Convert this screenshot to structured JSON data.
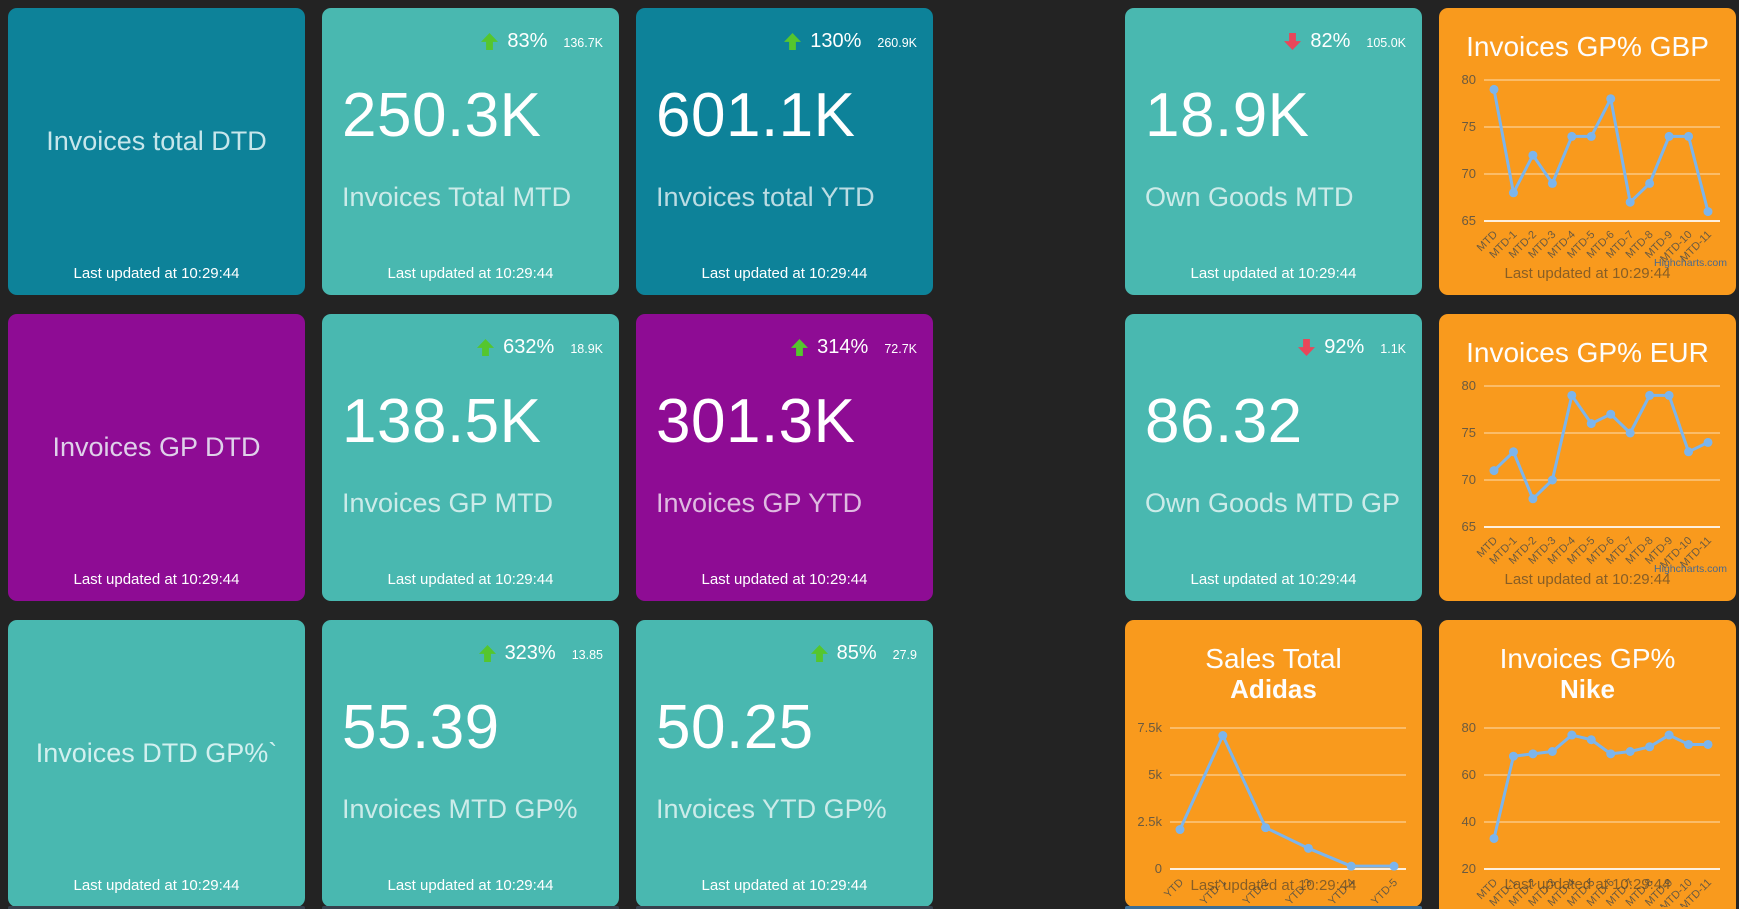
{
  "dashboard": {
    "last_updated": "Last updated at 10:29:44",
    "watermark": "Highcharts.com",
    "colors": {
      "background": "#232323",
      "dark_teal": "#0d8299",
      "teal": "#49b8b0",
      "purple": "#8e0c94",
      "orange": "#f99a1d",
      "trend_up_green": "#55c62d",
      "trend_down_red": "#e9475a",
      "chart_line_blue": "#7cb5ec"
    },
    "tiles": [
      {
        "name": "invoices-total-dtd",
        "type": "label",
        "bg": "dark-teal",
        "label": "Invoices total DTD"
      },
      {
        "name": "invoices-total-mtd",
        "type": "number",
        "bg": "teal",
        "trend_dir": "up",
        "trend_pct": "83%",
        "trend_prev": "136.7K",
        "value": "250.3K",
        "label": "Invoices Total MTD"
      },
      {
        "name": "invoices-total-ytd",
        "type": "number",
        "bg": "dark-teal",
        "trend_dir": "up",
        "trend_pct": "130%",
        "trend_prev": "260.9K",
        "value": "601.1K",
        "label": "Invoices total YTD"
      },
      {
        "name": "own-goods-mtd",
        "type": "number",
        "bg": "teal",
        "trend_dir": "down",
        "trend_pct": "82%",
        "trend_prev": "105.0K",
        "value": "18.9K",
        "label": "Own Goods MTD"
      },
      {
        "name": "invoices-gp-gbp",
        "type": "chart",
        "bg": "orange",
        "title_line1": "Invoices GP% GBP",
        "chart_index": 0
      },
      {
        "name": "invoices-gp-dtd",
        "type": "label",
        "bg": "purple",
        "label": "Invoices GP DTD"
      },
      {
        "name": "invoices-gp-mtd",
        "type": "number",
        "bg": "teal",
        "trend_dir": "up",
        "trend_pct": "632%",
        "trend_prev": "18.9K",
        "value": "138.5K",
        "label": "Invoices GP MTD"
      },
      {
        "name": "invoices-gp-ytd",
        "type": "number",
        "bg": "purple",
        "trend_dir": "up",
        "trend_pct": "314%",
        "trend_prev": "72.7K",
        "value": "301.3K",
        "label": "Invoices GP YTD"
      },
      {
        "name": "own-goods-mtd-gp",
        "type": "number",
        "bg": "teal",
        "trend_dir": "down",
        "trend_pct": "92%",
        "trend_prev": "1.1K",
        "value": "86.32",
        "label": "Own Goods MTD GP"
      },
      {
        "name": "invoices-gp-eur",
        "type": "chart",
        "bg": "orange",
        "title_line1": "Invoices GP% EUR",
        "chart_index": 1
      },
      {
        "name": "invoices-dtd-gp",
        "type": "label",
        "bg": "teal",
        "label": "Invoices DTD GP%`"
      },
      {
        "name": "invoices-mtd-gp",
        "type": "number",
        "bg": "teal",
        "trend_dir": "up",
        "trend_pct": "323%",
        "trend_prev": "13.85",
        "value": "55.39",
        "label": "Invoices MTD GP%"
      },
      {
        "name": "invoices-ytd-gp",
        "type": "number",
        "bg": "teal",
        "trend_dir": "up",
        "trend_pct": "85%",
        "trend_prev": "27.9",
        "value": "50.25",
        "label": "Invoices YTD GP%"
      },
      {
        "name": "sales-total-adidas",
        "type": "chart",
        "bg": "orange",
        "title_line1": "Sales Total",
        "title_line2": "Adidas",
        "chart_index": 2
      },
      {
        "name": "invoices-gp-nike",
        "type": "chart",
        "bg": "orange",
        "title_line1": "Invoices GP%",
        "title_line2": "Nike",
        "chart_index": 3
      }
    ]
  },
  "chart_data": [
    {
      "type": "line",
      "title": "Invoices GP% GBP",
      "categories": [
        "MTD",
        "MTD-1",
        "MTD-2",
        "MTD-3",
        "MTD-4",
        "MTD-5",
        "MTD-6",
        "MTD-7",
        "MTD-8",
        "MTD-9",
        "MTD-10",
        "MTD-11"
      ],
      "values": [
        79,
        68,
        72,
        69,
        74,
        74,
        78,
        67,
        69,
        74,
        74,
        66
      ],
      "yticks": [
        65,
        70,
        75,
        80
      ],
      "ylim": [
        65,
        80
      ],
      "xlabel": "",
      "ylabel": "",
      "grid": true,
      "legend": "none"
    },
    {
      "type": "line",
      "title": "Invoices GP% EUR",
      "categories": [
        "MTD",
        "MTD-1",
        "MTD-2",
        "MTD-3",
        "MTD-4",
        "MTD-5",
        "MTD-6",
        "MTD-7",
        "MTD-8",
        "MTD-9",
        "MTD-10",
        "MTD-11"
      ],
      "values": [
        71,
        73,
        68,
        70,
        79,
        76,
        77,
        75,
        79,
        79,
        73,
        74
      ],
      "yticks": [
        65,
        70,
        75,
        80
      ],
      "ylim": [
        65,
        80
      ],
      "xlabel": "",
      "ylabel": "",
      "grid": true,
      "legend": "none"
    },
    {
      "type": "line",
      "title": "Sales Total Adidas",
      "categories": [
        "YTD",
        "YTD-1",
        "YTD-2",
        "YTD-3",
        "YTD-4",
        "YTD-5"
      ],
      "values": [
        2100,
        7100,
        2200,
        1100,
        150,
        150
      ],
      "yticks": [
        0,
        2500,
        5000,
        7500
      ],
      "ytick_labels": [
        "0",
        "2.5k",
        "5k",
        "7.5k"
      ],
      "ylim": [
        0,
        7500
      ],
      "xlabel": "",
      "ylabel": "",
      "grid": true,
      "legend": "none"
    },
    {
      "type": "line",
      "title": "Invoices GP% Nike",
      "categories": [
        "MTD",
        "MTD-1",
        "MTD-2",
        "MTD-3",
        "MTD-4",
        "MTD-5",
        "MTD-6",
        "MTD-7",
        "MTD-8",
        "MTD-9",
        "MTD-10",
        "MTD-11"
      ],
      "values": [
        33,
        68,
        69,
        70,
        77,
        75,
        69,
        70,
        72,
        77,
        73,
        73
      ],
      "yticks": [
        20,
        40,
        60,
        80
      ],
      "ylim": [
        20,
        80
      ],
      "xlabel": "",
      "ylabel": "",
      "grid": true,
      "legend": "none"
    }
  ]
}
